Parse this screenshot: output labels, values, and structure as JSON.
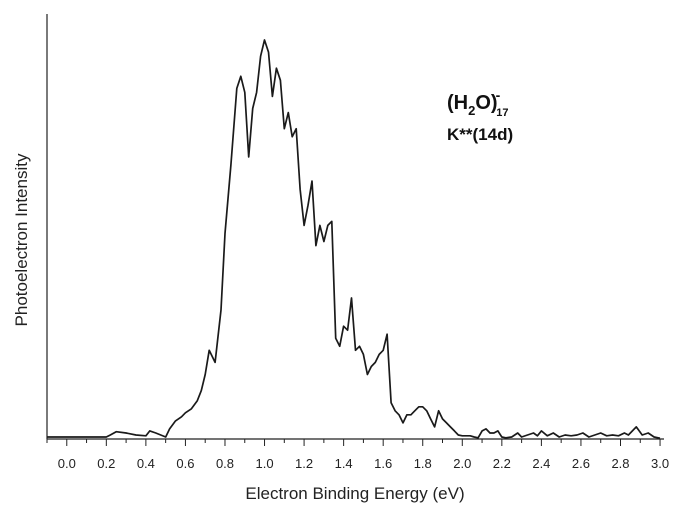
{
  "chart_data": {
    "type": "line",
    "title": "",
    "xlabel": "Electron Binding Energy (eV)",
    "ylabel": "Photoelectron Intensity",
    "xlim": [
      -0.1,
      3.02
    ],
    "ylim": [
      0,
      100
    ],
    "y_ticks_shown": false,
    "grid": false,
    "x_ticks": [
      "0.0",
      "0.2",
      "0.4",
      "0.6",
      "0.8",
      "1.0",
      "1.2",
      "1.4",
      "1.6",
      "1.8",
      "2.0",
      "2.2",
      "2.4",
      "2.6",
      "2.8",
      "3.0"
    ],
    "annotation": {
      "formula_main": "(H",
      "formula_sub": "2",
      "formula_mid": "O)",
      "formula_sup": "-",
      "formula_sub2": "17",
      "state": "K**(14d)"
    },
    "series": [
      {
        "x": [
          -0.1,
          0.0,
          0.1,
          0.2,
          0.22,
          0.25,
          0.3,
          0.35,
          0.4,
          0.42,
          0.45,
          0.5,
          0.52,
          0.55,
          0.58,
          0.6,
          0.63,
          0.66,
          0.68,
          0.7,
          0.72,
          0.75,
          0.78,
          0.8,
          0.83,
          0.86,
          0.88,
          0.9,
          0.92,
          0.94,
          0.96,
          0.98,
          1.0,
          1.02,
          1.04,
          1.06,
          1.08,
          1.1,
          1.12,
          1.14,
          1.16,
          1.18,
          1.2,
          1.22,
          1.24,
          1.26,
          1.28,
          1.3,
          1.32,
          1.34,
          1.36,
          1.38,
          1.4,
          1.42,
          1.44,
          1.46,
          1.48,
          1.5,
          1.52,
          1.54,
          1.56,
          1.58,
          1.6,
          1.62,
          1.64,
          1.66,
          1.68,
          1.7,
          1.72,
          1.74,
          1.76,
          1.78,
          1.8,
          1.82,
          1.84,
          1.86,
          1.88,
          1.9,
          1.92,
          1.94,
          1.96,
          1.98,
          2.0,
          2.02,
          2.04,
          2.06,
          2.08,
          2.1,
          2.12,
          2.14,
          2.16,
          2.18,
          2.2,
          2.22,
          2.25,
          2.28,
          2.3,
          2.33,
          2.36,
          2.38,
          2.4,
          2.43,
          2.46,
          2.49,
          2.52,
          2.55,
          2.58,
          2.61,
          2.64,
          2.67,
          2.7,
          2.73,
          2.76,
          2.79,
          2.82,
          2.84,
          2.86,
          2.88,
          2.91,
          2.94,
          2.97,
          3.0
        ],
        "values": [
          0.5,
          0.5,
          0.5,
          0.5,
          1.0,
          1.8,
          1.5,
          1.0,
          0.8,
          2.0,
          1.5,
          0.5,
          2.5,
          4.5,
          5.5,
          6.5,
          7.5,
          9.5,
          12,
          16,
          22,
          19,
          32,
          51,
          68,
          87,
          90,
          86,
          70,
          82,
          86,
          95,
          99,
          96,
          85,
          92,
          89,
          77,
          81,
          75,
          77,
          62,
          53,
          58,
          64,
          48,
          53,
          49,
          53,
          54,
          25,
          23,
          28,
          27,
          35,
          22,
          23,
          21,
          16,
          18,
          19,
          21,
          22,
          26,
          9,
          7,
          6,
          4,
          6,
          6,
          7,
          8,
          8,
          7,
          5,
          3,
          7,
          5,
          4,
          3,
          2,
          1,
          0.8,
          0.8,
          0.8,
          0.5,
          0.3,
          2.0,
          2.5,
          1.5,
          1.5,
          2.0,
          0.5,
          0.3,
          0.5,
          1.5,
          0.5,
          1.0,
          1.5,
          0.8,
          2.0,
          0.8,
          1.5,
          0.5,
          1.0,
          0.8,
          1.0,
          1.5,
          0.5,
          1.0,
          1.5,
          0.8,
          1.0,
          0.8,
          1.5,
          1.0,
          2.0,
          3.0,
          1.0,
          1.5,
          0.5,
          0.2
        ]
      }
    ]
  }
}
